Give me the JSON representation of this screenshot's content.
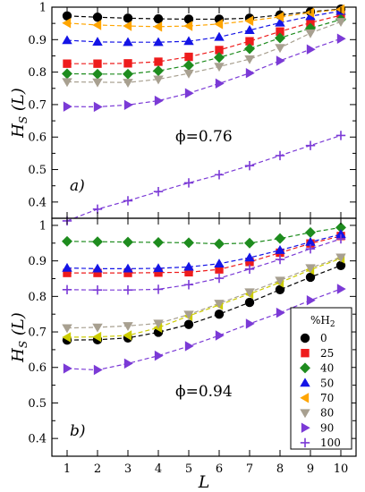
{
  "chart_data": {
    "type": "scatter",
    "xlabel": "L",
    "ylabel": "H_S (L)",
    "x": [
      1,
      2,
      3,
      4,
      5,
      6,
      7,
      8,
      9,
      10
    ],
    "xlim": [
      0.5,
      10.5
    ],
    "xticks": [
      "1",
      "2",
      "3",
      "4",
      "5",
      "6",
      "7",
      "8",
      "9",
      "10"
    ],
    "legend": {
      "title": "%H",
      "title_subscript": "2",
      "placement": "bottom-right",
      "entries": [
        "0",
        "25",
        "40",
        "50",
        "70",
        "80",
        "90",
        "100"
      ]
    },
    "panels": [
      {
        "label": "a)",
        "annotation": "ϕ=0.76",
        "ylim": [
          0.35,
          1.0
        ],
        "yticks": [
          "0.4",
          "0.5",
          "0.6",
          "0.7",
          "0.8",
          "0.9",
          "1"
        ],
        "series": [
          {
            "name": "0",
            "color": "#000000",
            "marker": "circle",
            "values": [
              0.973,
              0.969,
              0.966,
              0.964,
              0.963,
              0.963,
              0.966,
              0.976,
              0.986,
              0.994
            ]
          },
          {
            "name": "25",
            "color": "#ee1c1c",
            "marker": "square",
            "values": [
              0.826,
              0.826,
              0.827,
              0.832,
              0.847,
              0.868,
              0.895,
              0.925,
              0.952,
              0.975
            ]
          },
          {
            "name": "40",
            "color": "#1e8c1e",
            "marker": "diamond",
            "values": [
              0.795,
              0.794,
              0.794,
              0.804,
              0.821,
              0.845,
              0.872,
              0.905,
              0.935,
              0.962
            ]
          },
          {
            "name": "50",
            "color": "#1414e6",
            "marker": "triangle-up",
            "values": [
              0.898,
              0.893,
              0.892,
              0.892,
              0.895,
              0.908,
              0.929,
              0.952,
              0.972,
              0.988
            ]
          },
          {
            "name": "70",
            "color": "#ffa500",
            "marker": "triangle-left",
            "values": [
              0.951,
              0.945,
              0.942,
              0.94,
              0.942,
              0.948,
              0.958,
              0.97,
              0.983,
              0.993
            ]
          },
          {
            "name": "80",
            "color": "#a8a090",
            "marker": "triangle-down",
            "values": [
              0.77,
              0.769,
              0.768,
              0.778,
              0.796,
              0.817,
              0.84,
              0.875,
              0.92,
              0.955
            ]
          },
          {
            "name": "90",
            "color": "#7b3ad6",
            "marker": "triangle-right",
            "values": [
              0.694,
              0.693,
              0.699,
              0.712,
              0.735,
              0.765,
              0.797,
              0.835,
              0.87,
              0.903
            ]
          },
          {
            "name": "100",
            "color": "#7b3ad6",
            "marker": "plus",
            "values": [
              0.342,
              0.378,
              0.404,
              0.432,
              0.459,
              0.484,
              0.512,
              0.543,
              0.574,
              0.605
            ]
          }
        ]
      },
      {
        "label": "b)",
        "annotation": "ϕ=0.94",
        "ylim": [
          0.35,
          1.02
        ],
        "yticks": [
          "0.4",
          "0.5",
          "0.6",
          "0.7",
          "0.8",
          "0.9",
          "1"
        ],
        "series": [
          {
            "name": "0",
            "color": "#000000",
            "marker": "circle",
            "values": [
              0.677,
              0.678,
              0.683,
              0.699,
              0.721,
              0.75,
              0.783,
              0.819,
              0.854,
              0.887
            ]
          },
          {
            "name": "25",
            "color": "#ee1c1c",
            "marker": "square",
            "values": [
              0.866,
              0.866,
              0.866,
              0.867,
              0.868,
              0.876,
              0.897,
              0.923,
              0.949,
              0.97
            ]
          },
          {
            "name": "40",
            "color": "#1e8c1e",
            "marker": "diamond",
            "values": [
              0.955,
              0.954,
              0.953,
              0.952,
              0.951,
              0.948,
              0.95,
              0.963,
              0.98,
              0.994
            ]
          },
          {
            "name": "50",
            "color": "#1414e6",
            "marker": "triangle-up",
            "values": [
              0.88,
              0.878,
              0.878,
              0.879,
              0.883,
              0.892,
              0.909,
              0.93,
              0.953,
              0.975
            ]
          },
          {
            "name": "70",
            "color": "#cccc00",
            "marker": "triangle-left",
            "values": [
              0.685,
              0.686,
              0.69,
              0.712,
              0.745,
              0.776,
              0.807,
              0.839,
              0.875,
              0.907
            ]
          },
          {
            "name": "80",
            "color": "#a8a090",
            "marker": "triangle-down",
            "values": [
              0.711,
              0.713,
              0.717,
              0.724,
              0.749,
              0.78,
              0.812,
              0.845,
              0.88,
              0.91
            ]
          },
          {
            "name": "90",
            "color": "#7b3ad6",
            "marker": "triangle-right",
            "values": [
              0.597,
              0.593,
              0.611,
              0.633,
              0.66,
              0.69,
              0.723,
              0.754,
              0.789,
              0.821
            ]
          },
          {
            "name": "100",
            "color": "#7b3ad6",
            "marker": "plus",
            "values": [
              0.819,
              0.818,
              0.818,
              0.82,
              0.833,
              0.851,
              0.877,
              0.904,
              0.934,
              0.962
            ]
          }
        ]
      }
    ]
  }
}
